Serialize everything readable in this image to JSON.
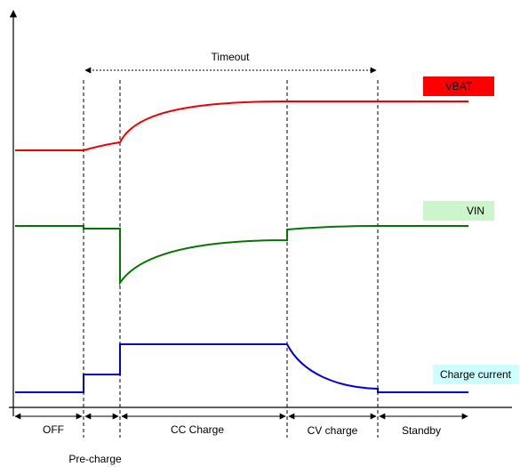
{
  "timeout_label": "Timeout",
  "signals": [
    {
      "label": "VBAT",
      "color": "#ee0000",
      "label_bg": "#ff0000"
    },
    {
      "label": "VIN",
      "color": "#007700",
      "label_bg": "#ccf5cc"
    },
    {
      "label": "Charge current",
      "color": "#0000dd",
      "label_bg": "#ccffff"
    }
  ],
  "phases": [
    "OFF",
    "Pre-charge",
    "CC Charge",
    "CV charge",
    "Standby"
  ]
}
